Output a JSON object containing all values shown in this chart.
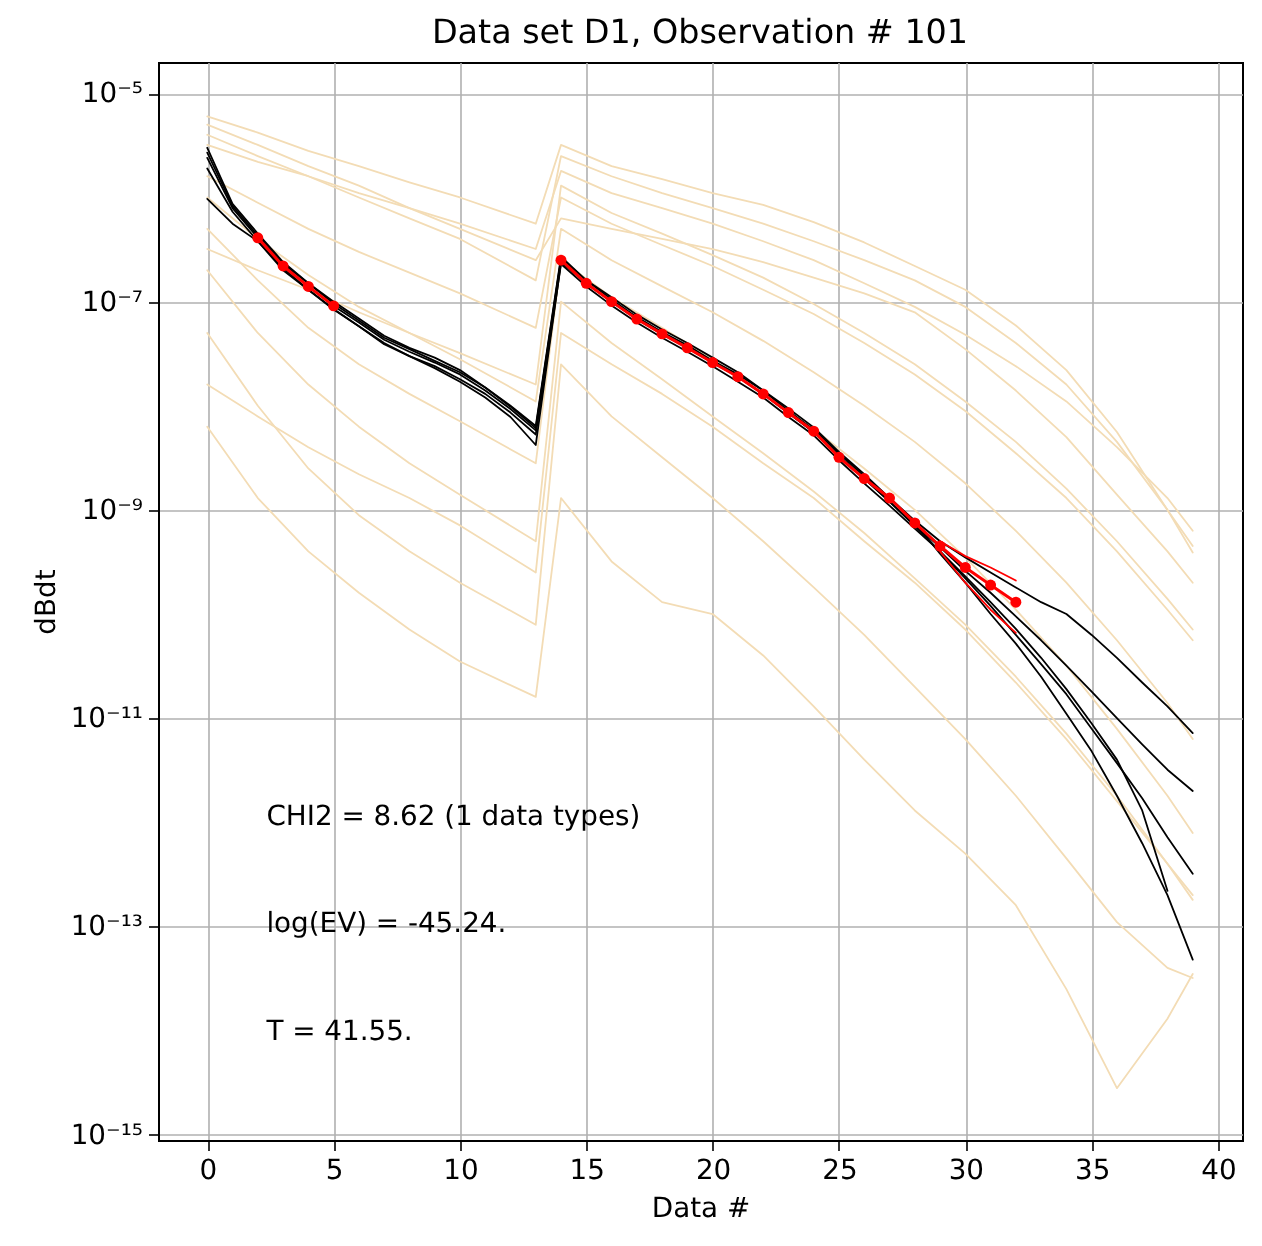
{
  "chart_data": {
    "type": "line",
    "title": "Data set D1, Observation # 101",
    "xlabel": "Data #",
    "ylabel": "dBdt",
    "annotations": [
      "CHI2 = 8.62 (1 data types)",
      "log(EV) = -45.24.",
      "T = 41.55."
    ],
    "log": true,
    "grid": true,
    "xlim": [
      -1.95,
      40.95
    ],
    "xticks": [
      0,
      5,
      10,
      15,
      20,
      25,
      30,
      35,
      40
    ],
    "ylim": [
      8.9e-16,
      2e-05
    ],
    "yticks": [
      {
        "value": 1e-15,
        "label": "10⁻¹⁵"
      },
      {
        "value": 1e-13,
        "label": "10⁻¹³"
      },
      {
        "value": 1e-11,
        "label": "10⁻¹¹"
      },
      {
        "value": 1e-09,
        "label": "10⁻⁹"
      },
      {
        "value": 1e-07,
        "label": "10⁻⁷"
      },
      {
        "value": 1e-05,
        "label": "10⁻⁵"
      }
    ],
    "x": [
      0,
      1,
      2,
      3,
      4,
      5,
      6,
      7,
      8,
      9,
      10,
      11,
      12,
      13,
      14,
      15,
      16,
      17,
      18,
      19,
      20,
      21,
      22,
      23,
      24,
      25,
      26,
      27,
      28,
      29,
      30,
      31,
      32,
      33,
      34,
      35,
      36,
      37,
      38,
      39
    ],
    "series": [
      {
        "color": "#f3dcb5",
        "x": [
          0,
          2,
          4,
          6,
          8,
          10,
          13,
          14,
          16,
          18,
          20,
          22,
          24,
          26,
          28,
          30,
          32,
          34,
          36,
          38,
          39
        ],
        "values": [
          6e-06,
          4.2e-06,
          2.8e-06,
          2e-06,
          1.4e-06,
          1e-06,
          5.6e-07,
          3.2e-06,
          2e-06,
          1.5e-06,
          1.1e-06,
          8.5e-07,
          5.8e-07,
          3.7e-07,
          2.2e-07,
          1.3e-07,
          5.9e-08,
          2.2e-08,
          5.6e-09,
          1e-09,
          3.9e-10
        ]
      },
      {
        "color": "#f3dcb5",
        "x": [
          0,
          2,
          4,
          6,
          8,
          10,
          13,
          14,
          16,
          18,
          20,
          22,
          24,
          26,
          28,
          30,
          32,
          34,
          36,
          38,
          39
        ],
        "values": [
          5e-06,
          3.2e-06,
          2e-06,
          1.3e-06,
          7.9e-07,
          5e-07,
          2.5e-07,
          6.3e-07,
          5e-07,
          4e-07,
          3.2e-07,
          2.4e-07,
          1.7e-07,
          1.2e-07,
          7.9e-08,
          3.5e-08,
          1.4e-08,
          5e-09,
          1.4e-09,
          4e-10,
          2e-10
        ]
      },
      {
        "color": "#f3dcb5",
        "x": [
          0,
          2,
          4,
          6,
          8,
          10,
          13,
          14,
          16,
          18,
          20,
          22,
          24,
          26,
          28,
          30,
          32,
          34,
          36,
          38,
          39
        ],
        "values": [
          4e-06,
          2.5e-06,
          1.6e-06,
          1e-06,
          6.3e-07,
          4e-07,
          1.6e-07,
          2.5e-06,
          1.6e-06,
          1.1e-06,
          7.9e-07,
          5.6e-07,
          3.8e-07,
          2.5e-07,
          1.6e-07,
          8.9e-08,
          4e-08,
          1.6e-08,
          4.5e-09,
          1e-09,
          4.5e-10
        ]
      },
      {
        "color": "#f3dcb5",
        "x": [
          0,
          2,
          4,
          6,
          8,
          10,
          13,
          14,
          16,
          18,
          20,
          22,
          24,
          26,
          28,
          30,
          32,
          34,
          36,
          38,
          39
        ],
        "values": [
          3.2e-06,
          2.2e-06,
          1.6e-06,
          1.1e-06,
          7.9e-07,
          5.6e-07,
          3.2e-07,
          1.8e-06,
          1.1e-06,
          7.9e-07,
          5.6e-07,
          3.8e-07,
          2.5e-07,
          1.5e-07,
          8.9e-08,
          4.8e-08,
          2.4e-08,
          1.1e-08,
          4e-09,
          1.3e-09,
          6.3e-10
        ]
      },
      {
        "color": "#f3dcb5",
        "x": [
          0,
          2,
          4,
          6,
          8,
          10,
          13,
          14,
          16,
          18,
          20,
          22,
          24,
          26,
          28,
          30,
          32,
          34,
          36,
          38,
          39
        ],
        "values": [
          1.6e-06,
          8.9e-07,
          5e-07,
          3e-07,
          1.9e-07,
          1.2e-07,
          5.6e-08,
          1e-06,
          5.6e-07,
          3.5e-07,
          2.2e-07,
          1.3e-07,
          7.6e-08,
          4e-08,
          2e-08,
          8.9e-09,
          3.5e-09,
          1.3e-09,
          4e-10,
          1.1e-10,
          5.6e-11
        ]
      },
      {
        "color": "#f3dcb5",
        "x": [
          0,
          2,
          4,
          6,
          8,
          10,
          13,
          14,
          16,
          18,
          20,
          22,
          24,
          26,
          28,
          30,
          32,
          34,
          36,
          38,
          39
        ],
        "values": [
          3.2e-07,
          2e-07,
          1.3e-07,
          7.9e-08,
          5e-08,
          3.2e-08,
          1.6e-08,
          1.3e-06,
          7.1e-07,
          4.5e-07,
          2.8e-07,
          1.7e-07,
          9.5e-08,
          5e-08,
          2.5e-08,
          1.1e-08,
          4.5e-09,
          1.6e-09,
          5e-10,
          1.4e-10,
          7.1e-11
        ]
      },
      {
        "color": "#f3dcb5",
        "x": [
          0,
          2,
          4,
          6,
          8,
          10,
          13,
          14,
          16,
          18,
          20,
          22,
          24,
          26,
          28,
          30,
          32,
          34,
          36,
          38,
          39
        ],
        "values": [
          1e-06,
          4e-07,
          1.8e-07,
          8.9e-08,
          5e-08,
          2.8e-08,
          1.1e-08,
          5e-07,
          2.5e-07,
          1.4e-07,
          7.9e-08,
          4.2e-08,
          2.1e-08,
          1e-08,
          4.5e-09,
          1.8e-09,
          6.3e-10,
          2e-10,
          5.6e-11,
          1.4e-11,
          6.3e-12
        ]
      },
      {
        "color": "#f3dcb5",
        "x": [
          0,
          2,
          4,
          6,
          8,
          10,
          13,
          14,
          16,
          18,
          20,
          22,
          24,
          26,
          28,
          30,
          32,
          34,
          36,
          38,
          39
        ],
        "values": [
          5e-07,
          1.6e-07,
          5.6e-08,
          2.5e-08,
          1.3e-08,
          7.1e-09,
          2.8e-09,
          2.5e-07,
          1.1e-07,
          5.6e-08,
          2.8e-08,
          1.3e-08,
          6e-09,
          2.5e-09,
          1e-09,
          3.5e-10,
          1.1e-10,
          3.2e-11,
          7.9e-12,
          1.8e-12,
          7.9e-13
        ]
      },
      {
        "color": "#f3dcb5",
        "x": [
          0,
          2,
          4,
          6,
          8,
          10,
          13,
          14,
          16,
          18,
          20,
          22,
          24,
          26,
          28,
          30,
          32,
          34,
          36,
          38,
          39
        ],
        "values": [
          2e-07,
          5e-08,
          1.6e-08,
          6.3e-09,
          2.8e-09,
          1.4e-09,
          5e-10,
          1e-07,
          4e-08,
          1.8e-08,
          7.9e-09,
          3.5e-09,
          1.5e-09,
          6e-10,
          2.2e-10,
          7.9e-11,
          2.5e-11,
          7.1e-12,
          1.8e-12,
          4e-13,
          1.8e-13
        ]
      },
      {
        "color": "#f3dcb5",
        "x": [
          0,
          2,
          4,
          6,
          8,
          10,
          13,
          14,
          16,
          18,
          20,
          22,
          24,
          26,
          28,
          30,
          32,
          34,
          36,
          38,
          39
        ],
        "values": [
          1.6e-08,
          7.9e-09,
          4e-09,
          2.2e-09,
          1.3e-09,
          7.1e-10,
          2.5e-10,
          5e-08,
          2.5e-08,
          1.3e-08,
          6.3e-09,
          2.8e-09,
          1.3e-09,
          5e-10,
          2e-10,
          7.1e-11,
          2.2e-11,
          6.3e-12,
          1.6e-12,
          4e-13,
          2e-13
        ]
      },
      {
        "color": "#f3dcb5",
        "x": [
          0,
          2,
          4,
          6,
          8,
          10,
          13,
          14,
          16,
          18,
          20,
          22,
          24,
          26,
          28,
          30,
          32,
          34,
          36,
          38,
          39
        ],
        "values": [
          5e-08,
          1e-08,
          2.5e-09,
          8.9e-10,
          4e-10,
          2e-10,
          7.9e-11,
          2.5e-08,
          7.9e-09,
          3.2e-09,
          1.3e-09,
          5e-10,
          1.8e-10,
          6.3e-11,
          2e-11,
          6.3e-12,
          1.8e-12,
          4.5e-13,
          1.1e-13,
          4e-14,
          3.2e-14
        ]
      },
      {
        "color": "#f3dcb5",
        "x": [
          0,
          2,
          4,
          6,
          8,
          10,
          13,
          14,
          16,
          18,
          20,
          22,
          24,
          26,
          28,
          30,
          32,
          34,
          36,
          38,
          39
        ],
        "values": [
          6.3e-09,
          1.3e-09,
          4e-10,
          1.6e-10,
          7.1e-11,
          3.5e-11,
          1.6e-11,
          1.3e-09,
          3.2e-10,
          1.3e-10,
          1e-10,
          4e-11,
          1.3e-11,
          4e-12,
          1.3e-12,
          5e-13,
          1.6e-13,
          2.5e-14,
          2.8e-15,
          1.3e-14,
          3.5e-14
        ]
      },
      {
        "color": "#000000",
        "values": [
          3e-06,
          8.7e-07,
          4.5e-07,
          2.4e-07,
          1.5e-07,
          1e-07,
          6.9e-08,
          4.7e-08,
          3.6e-08,
          2.9e-08,
          2.2e-08,
          1.5e-08,
          1e-08,
          6.4e-09,
          2.7e-07,
          1.6e-07,
          1.1e-07,
          7.5e-08,
          5.4e-08,
          4e-08,
          2.9e-08,
          2.1e-08,
          1.4e-08,
          9.4e-09,
          6.2e-09,
          3.6e-09,
          2.2e-09,
          1.3e-09,
          7.9e-10,
          5e-10,
          3.5e-10,
          2.5e-10,
          1.8e-10,
          1.3e-10,
          1e-10,
          6.3e-11,
          3.8e-11,
          2.2e-11,
          1.3e-11,
          7.2e-12
        ]
      },
      {
        "color": "#000000",
        "values": [
          2.4e-06,
          7.9e-07,
          4.1e-07,
          2.2e-07,
          1.4e-07,
          9.1e-08,
          6.3e-08,
          4.3e-08,
          3.3e-08,
          2.6e-08,
          2e-08,
          1.4e-08,
          9.3e-09,
          5.8e-09,
          2.5e-07,
          1.5e-07,
          1e-07,
          6.8e-08,
          4.9e-08,
          3.6e-08,
          2.6e-08,
          1.9e-08,
          1.3e-08,
          8.5e-09,
          5.6e-09,
          3.3e-09,
          2e-09,
          1.2e-09,
          7.2e-10,
          4.4e-10,
          2.6e-10,
          1.6e-10,
          9.5e-11,
          5.6e-11,
          3.2e-11,
          1.8e-11,
          1e-11,
          5.6e-12,
          3.2e-12,
          2e-12
        ]
      },
      {
        "color": "#000000",
        "values": [
          1.9e-06,
          7.3e-07,
          3.8e-07,
          2e-07,
          1.3e-07,
          8.4e-08,
          5.8e-08,
          4e-08,
          3e-08,
          2.4e-08,
          1.8e-08,
          1.3e-08,
          8.6e-09,
          5.3e-09,
          2.3e-07,
          1.4e-07,
          9.2e-08,
          6.3e-08,
          4.5e-08,
          3.3e-08,
          2.4e-08,
          1.7e-08,
          1.2e-08,
          7.8e-09,
          5.2e-09,
          3e-09,
          1.8e-09,
          1.1e-09,
          6.6e-10,
          4e-10,
          2.2e-10,
          1.2e-10,
          6.3e-11,
          3.3e-11,
          1.7e-11,
          7.9e-12,
          3.7e-12,
          1.7e-12,
          7.2e-13,
          3.2e-13
        ]
      },
      {
        "color": "#000000",
        "values": [
          2.7e-06,
          8.3e-07,
          4.3e-07,
          2.3e-07,
          1.5e-07,
          9.6e-08,
          6.6e-08,
          4.5e-08,
          3.5e-08,
          2.7e-08,
          2.1e-08,
          1.5e-08,
          9.8e-09,
          6.1e-09,
          2.6e-07,
          1.6e-07,
          1.05e-07,
          7.1e-08,
          5.1e-08,
          3.8e-08,
          2.7e-08,
          2e-08,
          1.4e-08,
          8.9e-09,
          5.9e-09,
          3.5e-09,
          2.1e-09,
          1.3e-09,
          7.6e-10,
          3.8e-10,
          2e-10,
          1e-10,
          5.2e-11,
          2.5e-11,
          1.1e-11,
          4.8e-12,
          1.8e-12,
          6.3e-13,
          2e-13,
          4.8e-14
        ]
      },
      {
        "color": "#000000",
        "values": [
          9.7e-07,
          5.6e-07,
          3.8e-07,
          2.1e-07,
          1.3e-07,
          8.5e-08,
          5.8e-08,
          3.9e-08,
          3e-08,
          2.3e-08,
          1.7e-08,
          1.2e-08,
          7.8e-09,
          4.2e-09,
          2.4e-07,
          1.5e-07,
          1e-07,
          6.8e-08,
          4.9e-08,
          3.6e-08,
          2.6e-08,
          1.9e-08,
          1.3e-08,
          8.5e-09,
          5.6e-09,
          3.3e-09,
          2e-09,
          1.2e-09,
          7e-10,
          4e-10,
          2.3e-10,
          1.3e-10,
          7.2e-11,
          3.8e-11,
          1.9e-11,
          8.9e-12,
          4e-12,
          1.3e-12,
          2.2e-13,
          null
        ]
      },
      {
        "color": "#ff0000",
        "marker": "circle",
        "x": [
          2,
          3,
          4,
          5,
          6,
          7,
          8,
          9,
          10,
          11,
          12,
          13,
          14,
          15,
          16,
          17,
          18,
          19,
          20,
          21,
          22,
          23,
          24,
          25,
          26,
          27,
          28,
          29,
          30,
          31,
          32
        ],
        "values": [
          4.1e-07,
          2.2e-07,
          1.4e-07,
          9.1e-08,
          null,
          null,
          null,
          null,
          null,
          null,
          null,
          null,
          2.5e-07,
          1.5e-07,
          1e-07,
          6.8e-08,
          4.9e-08,
          3.6e-08,
          2.6e-08,
          1.9e-08,
          1.3e-08,
          8.6e-09,
          5.7e-09,
          3.2e-09,
          2e-09,
          1.3e-09,
          7.5e-10,
          4.5e-10,
          2.8e-10,
          1.9e-10,
          1.3e-10
        ]
      },
      {
        "color": "#ff0000",
        "x": [
          29,
          30,
          31,
          32
        ],
        "values": [
          5e-10,
          3.6e-10,
          2.8e-10,
          2.1e-10
        ]
      },
      {
        "color": "#ff0000",
        "x": [
          29,
          30,
          31,
          32
        ],
        "values": [
          4e-10,
          2e-10,
          1.1e-10,
          6.6e-11
        ]
      }
    ]
  }
}
